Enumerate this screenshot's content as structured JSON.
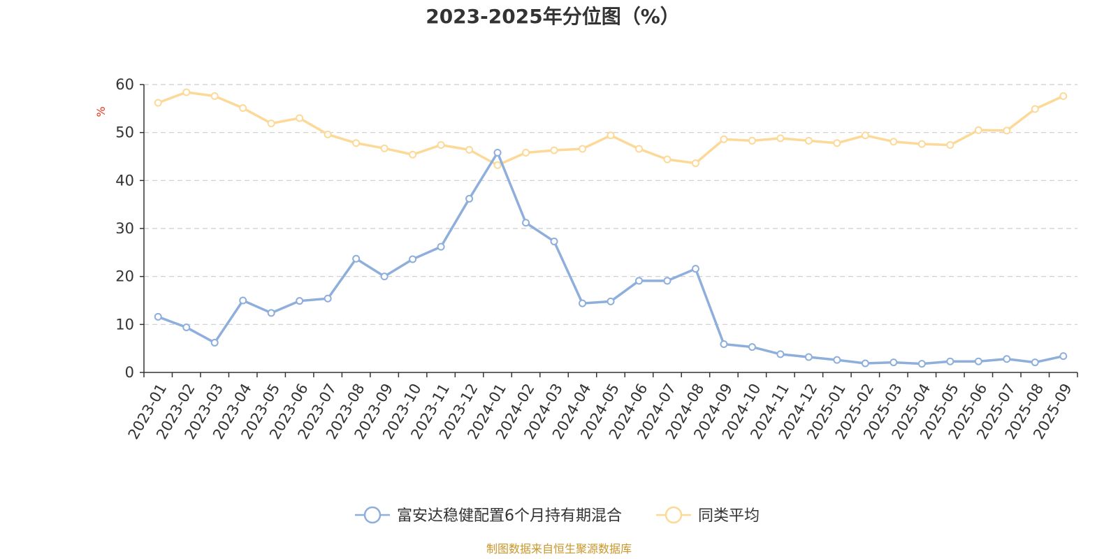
{
  "chart_data": {
    "type": "line",
    "title": "2023-2025年分位图（%）",
    "ylabel": "%",
    "xlabel": "",
    "ylim": [
      0,
      60
    ],
    "yticks": [
      0,
      10,
      20,
      30,
      40,
      50,
      60
    ],
    "grid": true,
    "legend_position": "bottom-center",
    "x": [
      "2023-01",
      "2023-02",
      "2023-03",
      "2023-04",
      "2023-05",
      "2023-06",
      "2023-07",
      "2023-08",
      "2023-09",
      "2023-10",
      "2023-11",
      "2023-12",
      "2024-01",
      "2024-02",
      "2024-03",
      "2024-04",
      "2024-05",
      "2024-06",
      "2024-07",
      "2024-08",
      "2024-09",
      "2024-10",
      "2024-11",
      "2024-12",
      "2025-01",
      "2025-02",
      "2025-03",
      "2025-04",
      "2025-05",
      "2025-06",
      "2025-07",
      "2025-08",
      "2025-09"
    ],
    "series": [
      {
        "name": "富安达稳健配置6个月持有期混合",
        "color": "#8eaedb",
        "values": [
          11.6,
          9.4,
          6.2,
          15.0,
          12.4,
          14.9,
          15.4,
          23.7,
          20.0,
          23.6,
          26.2,
          36.2,
          45.8,
          31.2,
          27.3,
          14.4,
          14.8,
          19.1,
          19.1,
          21.6,
          5.9,
          5.3,
          3.8,
          3.2,
          2.6,
          1.9,
          2.1,
          1.8,
          2.3,
          2.3,
          2.8,
          2.1,
          3.4
        ]
      },
      {
        "name": "同类平均",
        "color": "#fcd998",
        "values": [
          56.2,
          58.4,
          57.6,
          55.1,
          51.9,
          53.0,
          49.6,
          47.8,
          46.7,
          45.4,
          47.4,
          46.4,
          43.2,
          45.8,
          46.3,
          46.6,
          49.4,
          46.6,
          44.4,
          43.6,
          48.6,
          48.3,
          48.8,
          48.3,
          47.8,
          49.4,
          48.1,
          47.6,
          47.4,
          50.5,
          50.4,
          54.9,
          57.6
        ]
      }
    ],
    "source": "制图数据来自恒生聚源数据库"
  },
  "colors": {
    "axis": "#333333",
    "grid": "#cccccc",
    "unit_label": "#e8341c",
    "source_text": "#c8962a"
  }
}
